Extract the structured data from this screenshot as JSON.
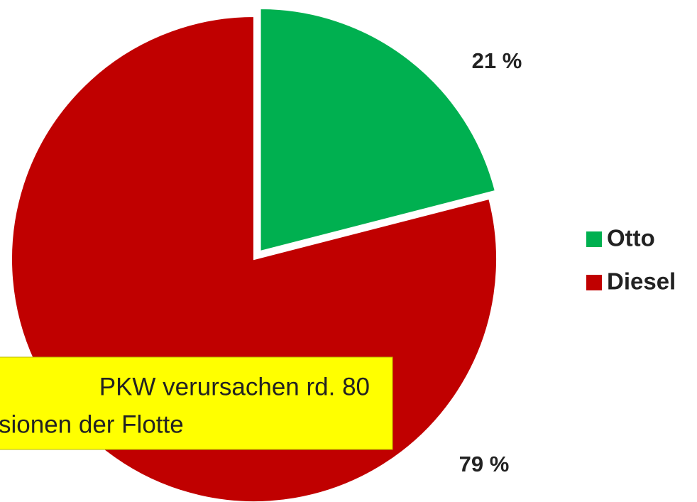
{
  "chart_data": {
    "type": "pie",
    "categories": [
      "Otto",
      "Diesel"
    ],
    "values": [
      21,
      79
    ],
    "value_labels": [
      "21 %",
      "79 %"
    ],
    "colors": [
      "#00b050",
      "#c00000"
    ],
    "legend": "right",
    "annotation": [
      "PKW verursachen rd. 80",
      "sionen der Flotte"
    ]
  }
}
